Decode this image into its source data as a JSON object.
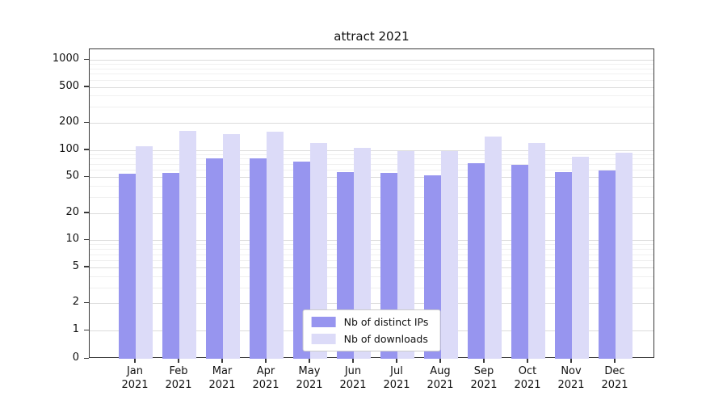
{
  "chart_data": {
    "type": "bar",
    "title": "attract 2021",
    "yscale": "symlog",
    "ylim": [
      0,
      1300
    ],
    "grid": true,
    "legend_position": "lower center",
    "categories": [
      "Jan 2021",
      "Feb 2021",
      "Mar 2021",
      "Apr 2021",
      "May 2021",
      "Jun 2021",
      "Jul 2021",
      "Aug 2021",
      "Sep 2021",
      "Oct 2021",
      "Nov 2021",
      "Dec 2021"
    ],
    "yticks": [
      0,
      1,
      2,
      5,
      10,
      20,
      50,
      100,
      200,
      500,
      1000
    ],
    "series": [
      {
        "name": "Nb of distinct IPs",
        "color": "#9795ef",
        "values": [
          55,
          56,
          80,
          80,
          75,
          57,
          56,
          52,
          72,
          68,
          57,
          59
        ]
      },
      {
        "name": "Nb of downloads",
        "color": "#dcdbf8",
        "values": [
          110,
          162,
          150,
          160,
          120,
          105,
          98,
          97,
          140,
          120,
          85,
          93
        ]
      }
    ]
  }
}
